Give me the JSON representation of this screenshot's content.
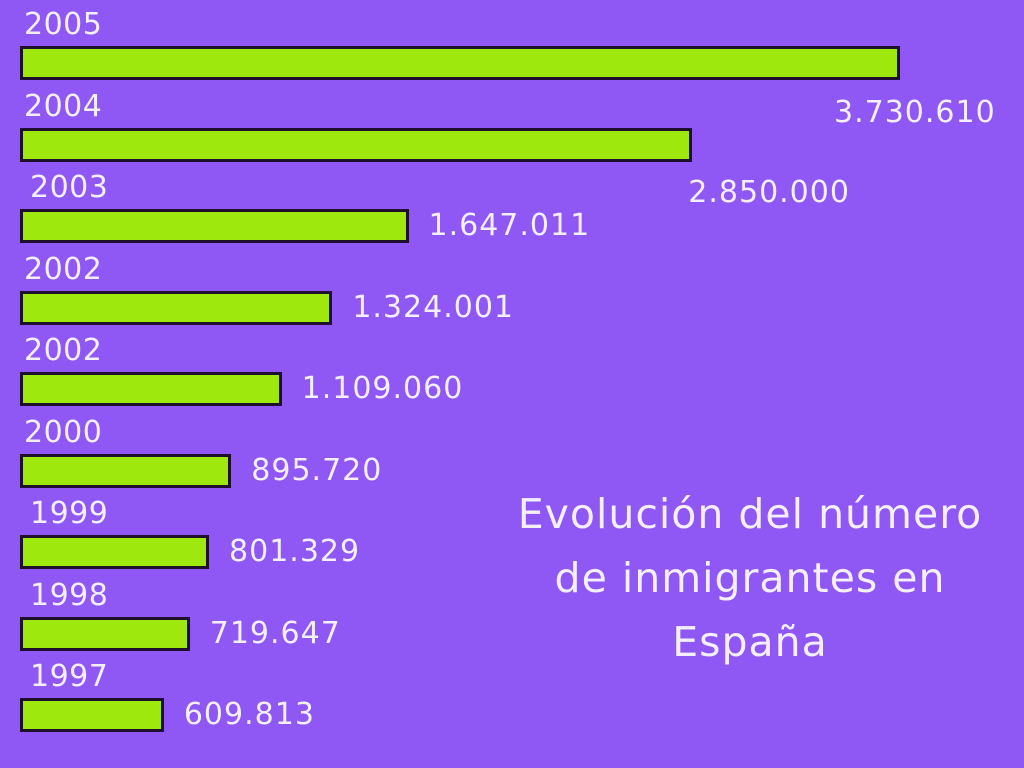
{
  "chart_data": {
    "type": "bar",
    "orientation": "horizontal",
    "title_lines": [
      "Evolución del número",
      "de inmigrantes en",
      "España"
    ],
    "categories": [
      "2005",
      "2004",
      "2003",
      "2002",
      "2002",
      "2000",
      "1999",
      "1998",
      "1997"
    ],
    "values": [
      3730610,
      2850000,
      1647011,
      1324001,
      1109060,
      895720,
      801329,
      719647,
      609813
    ],
    "value_labels": [
      "3.730.610",
      "2.850.000",
      "1.647.011",
      "1.324.001",
      "1.109.060",
      "895.720",
      "801.329",
      "719.647",
      "609.813"
    ],
    "xlim": [
      0,
      3730610
    ],
    "grid": false,
    "legend": "none",
    "colors": {
      "background": "#8f57f3",
      "bar": "#9fe80d",
      "bar_border": "#1e0f2c",
      "text": "#f4efff"
    }
  }
}
